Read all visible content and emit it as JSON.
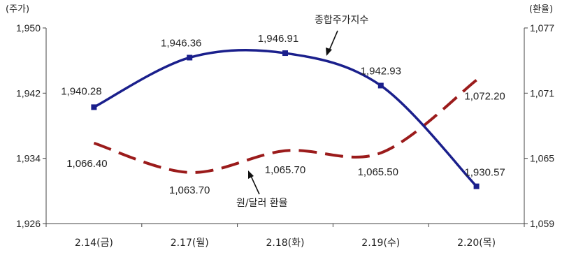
{
  "chart_data": {
    "type": "line",
    "categories": [
      "2.14(금)",
      "2.17(월)",
      "2.18(화)",
      "2.19(수)",
      "2.20(목)"
    ],
    "left_axis": {
      "unit_label": "(주가)",
      "ylim": [
        1926,
        1950
      ],
      "ticks": [
        "1,926",
        "1,934",
        "1,942",
        "1,950"
      ],
      "tick_values": [
        1926,
        1934,
        1942,
        1950
      ]
    },
    "right_axis": {
      "unit_label": "(환율)",
      "ylim": [
        1059,
        1077
      ],
      "ticks": [
        "1,059",
        "1,065",
        "1,071",
        "1,077"
      ],
      "tick_values": [
        1059,
        1065,
        1071,
        1077
      ]
    },
    "series": [
      {
        "name": "종합주가지수",
        "axis": "left",
        "color": "#1a1f8c",
        "style": "solid-with-square-markers",
        "values": [
          1940.28,
          1946.36,
          1946.91,
          1942.93,
          1930.57
        ],
        "labels": [
          "1,940.28",
          "1,946.36",
          "1,946.91",
          "1,942.93",
          "1,930.57"
        ]
      },
      {
        "name": "원/달러 환율",
        "axis": "right",
        "color": "#9b1b1b",
        "style": "dashed",
        "values": [
          1066.4,
          1063.7,
          1065.7,
          1065.5,
          1072.2
        ],
        "labels": [
          "1,066.40",
          "1,063.70",
          "1,065.70",
          "1,065.50",
          "1,072.20"
        ]
      }
    ],
    "grid": false,
    "legend": "annotations"
  }
}
